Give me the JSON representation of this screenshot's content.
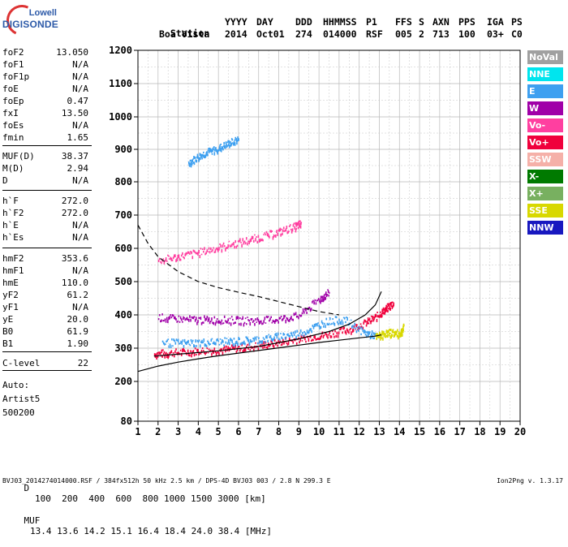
{
  "logo": {
    "line1": "Lowell",
    "line2": "DIGISONDE"
  },
  "header": {
    "row1": [
      "Station",
      "YYYY",
      "DAY",
      "DDD",
      "HHMMSS",
      "P1",
      "FFS",
      "S",
      "AXN",
      "PPS",
      "IGA",
      "PS"
    ],
    "row2": [
      "Boa Vista",
      "2014",
      "Oct01",
      "274",
      "014000",
      "RSF",
      "005",
      "2",
      "713",
      "100",
      "03+",
      "C0"
    ]
  },
  "params": [
    {
      "label": "foF2",
      "value": "13.050"
    },
    {
      "label": "foF1",
      "value": "N/A"
    },
    {
      "label": "foF1p",
      "value": "N/A"
    },
    {
      "label": "foE",
      "value": "N/A"
    },
    {
      "label": "foEp",
      "value": "0.47"
    },
    {
      "label": "fxI",
      "value": "13.50"
    },
    {
      "label": "foEs",
      "value": "N/A"
    },
    {
      "label": "fmin",
      "value": "1.65"
    },
    {
      "label": "MUF(D)",
      "value": "38.37"
    },
    {
      "label": "M(D)",
      "value": "2.94"
    },
    {
      "label": "D",
      "value": "N/A"
    },
    {
      "label": "h`F",
      "value": "272.0"
    },
    {
      "label": "h`F2",
      "value": "272.0"
    },
    {
      "label": "h`E",
      "value": "N/A"
    },
    {
      "label": "h`Es",
      "value": "N/A"
    },
    {
      "label": "hmF2",
      "value": "353.6"
    },
    {
      "label": "hmF1",
      "value": "N/A"
    },
    {
      "label": "hmE",
      "value": "110.0"
    },
    {
      "label": "yF2",
      "value": "61.2"
    },
    {
      "label": "yF1",
      "value": "N/A"
    },
    {
      "label": "yE",
      "value": "20.0"
    },
    {
      "label": "B0",
      "value": "61.9"
    },
    {
      "label": "B1",
      "value": "1.90"
    },
    {
      "label": "C-level",
      "value": "22"
    }
  ],
  "auto": {
    "line1": "Auto:",
    "line2": "Artist5",
    "line3": "500200"
  },
  "legend": [
    {
      "label": "NoVal",
      "color": "#a0a0a0"
    },
    {
      "label": "NNE",
      "color": "#00e5ee"
    },
    {
      "label": "E",
      "color": "#3ea0f0"
    },
    {
      "label": "W",
      "color": "#a000a8"
    },
    {
      "label": "Vo-",
      "color": "#ff3fa0"
    },
    {
      "label": "Vo+",
      "color": "#f0003c"
    },
    {
      "label": "SSW",
      "color": "#f5b0a8"
    },
    {
      "label": "X-",
      "color": "#007a00"
    },
    {
      "label": "X+",
      "color": "#78b060"
    },
    {
      "label": "SSE",
      "color": "#d8d800"
    },
    {
      "label": "NNW",
      "color": "#1818c0"
    }
  ],
  "footer": {
    "d_label": "D",
    "d_values": "100  200  400  600  800 1000 1500 3000 [km]",
    "muf_label": "MUF",
    "muf_values": "13.4 13.6 14.2 15.1 16.4 18.4 24.0 38.4 [MHz]",
    "file_line": "BVJ03_2014274014000.RSF / 384fx512h 50 kHz 2.5 km / DPS-4D BVJ03 003 / 2.8 N 299.3 E",
    "version": "Ion2Png v. 1.3.17"
  },
  "chart_data": {
    "type": "scatter",
    "title": "",
    "xlabel": "",
    "ylabel": "",
    "xlim": [
      1,
      20
    ],
    "ylim": [
      80,
      1200
    ],
    "x_ticks": [
      1,
      2,
      3,
      4,
      5,
      6,
      7,
      8,
      9,
      10,
      11,
      12,
      13,
      14,
      15,
      16,
      17,
      18,
      19,
      20
    ],
    "y_ticks": [
      80,
      200,
      300,
      400,
      500,
      600,
      700,
      800,
      900,
      1000,
      1100,
      1200
    ],
    "grid": true,
    "series": [
      {
        "color": "#f0003c",
        "points": [
          [
            1.8,
            285
          ],
          [
            2.5,
            288
          ],
          [
            3.5,
            292
          ],
          [
            4.5,
            296
          ],
          [
            5.5,
            300
          ],
          [
            6.5,
            306
          ],
          [
            7.5,
            315
          ],
          [
            8.5,
            325
          ],
          [
            9.5,
            335
          ],
          [
            10.5,
            345
          ],
          [
            11.5,
            360
          ],
          [
            12.3,
            378
          ],
          [
            12.9,
            400
          ],
          [
            13.3,
            420
          ],
          [
            13.7,
            440
          ]
        ]
      },
      {
        "color": "#ff3fa0",
        "points": [
          [
            2.0,
            565
          ],
          [
            3.0,
            578
          ],
          [
            4.0,
            590
          ],
          [
            5.0,
            605
          ],
          [
            6.0,
            620
          ],
          [
            7.0,
            635
          ],
          [
            8.0,
            652
          ],
          [
            8.8,
            668
          ],
          [
            9.1,
            678
          ]
        ]
      },
      {
        "color": "#a000a8",
        "points": [
          [
            2.0,
            395
          ],
          [
            3.0,
            390
          ],
          [
            4.0,
            388
          ],
          [
            5.0,
            388
          ],
          [
            6.0,
            386
          ],
          [
            7.0,
            385
          ],
          [
            8.0,
            390
          ],
          [
            9.0,
            400
          ],
          [
            10.0,
            450
          ],
          [
            10.5,
            470
          ]
        ]
      },
      {
        "color": "#3ea0f0",
        "points": [
          [
            2.2,
            320
          ],
          [
            3.2,
            318
          ],
          [
            4.2,
            320
          ],
          [
            5.2,
            322
          ],
          [
            6.2,
            325
          ],
          [
            7.2,
            330
          ],
          [
            8.2,
            340
          ],
          [
            9.2,
            350
          ],
          [
            10.2,
            380
          ],
          [
            11.2,
            390
          ],
          [
            12.2,
            350
          ],
          [
            12.8,
            340
          ]
        ]
      },
      {
        "color": "#d8d800",
        "points": [
          [
            12.8,
            335
          ],
          [
            13.2,
            345
          ],
          [
            13.6,
            350
          ],
          [
            14.0,
            345
          ],
          [
            14.2,
            365
          ]
        ]
      },
      {
        "color": "#3ea0f0",
        "points": [
          [
            3.5,
            860
          ],
          [
            4.0,
            880
          ],
          [
            4.5,
            895
          ],
          [
            5.0,
            905
          ],
          [
            5.5,
            920
          ],
          [
            6.0,
            935
          ]
        ]
      }
    ],
    "curves": [
      {
        "name_hidden": "virtual-height-profile",
        "style": "solid",
        "points": [
          [
            1.0,
            230
          ],
          [
            2.0,
            246
          ],
          [
            3.0,
            258
          ],
          [
            4.0,
            268
          ],
          [
            5.0,
            277
          ],
          [
            6.0,
            285
          ],
          [
            7.0,
            293
          ],
          [
            8.0,
            301
          ],
          [
            9.0,
            309
          ],
          [
            10.0,
            317
          ],
          [
            11.0,
            324
          ],
          [
            12.0,
            331
          ],
          [
            12.8,
            336
          ],
          [
            13.1,
            340
          ]
        ]
      },
      {
        "name_hidden": "x-trace",
        "style": "solid",
        "points": [
          [
            1.8,
            276
          ],
          [
            3,
            282
          ],
          [
            5,
            292
          ],
          [
            7,
            305
          ],
          [
            9,
            328
          ],
          [
            10.5,
            350
          ],
          [
            11.5,
            372
          ],
          [
            12.3,
            400
          ],
          [
            12.8,
            430
          ],
          [
            13.1,
            470
          ]
        ]
      },
      {
        "name_hidden": "f2-extrapolation",
        "style": "dashed",
        "points": [
          [
            1.0,
            670
          ],
          [
            1.5,
            615
          ],
          [
            2.0,
            575
          ],
          [
            3.0,
            530
          ],
          [
            4.0,
            500
          ],
          [
            5.0,
            482
          ],
          [
            6.0,
            468
          ],
          [
            7.0,
            455
          ],
          [
            8.0,
            440
          ],
          [
            9.0,
            425
          ],
          [
            10.0,
            410
          ],
          [
            11.0,
            400
          ]
        ]
      }
    ]
  }
}
